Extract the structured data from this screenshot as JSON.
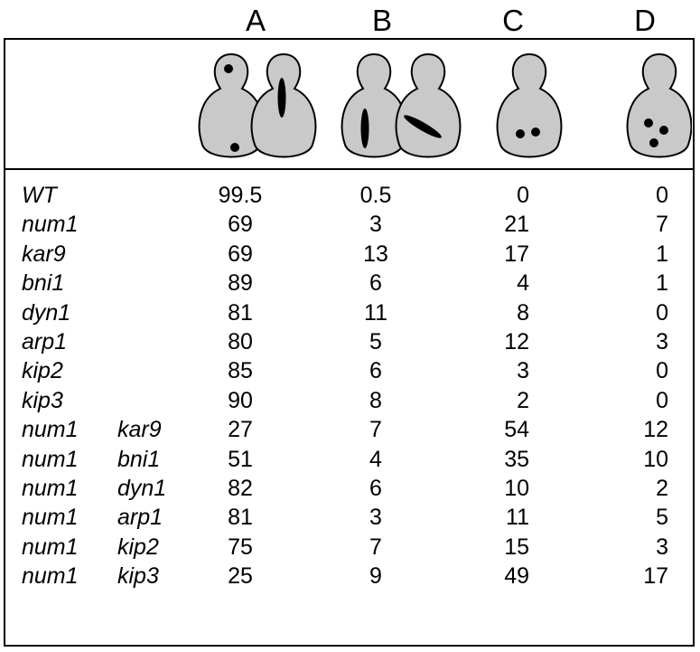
{
  "columns": [
    "A",
    "B",
    "C",
    "D"
  ],
  "rows": [
    {
      "gene1": "WT",
      "gene2": "",
      "A": "99.5",
      "B": "0.5",
      "C": "0",
      "D": "0"
    },
    {
      "gene1": "num1",
      "gene2": "",
      "A": "69",
      "B": "3",
      "C": "21",
      "D": "7"
    },
    {
      "gene1": "kar9",
      "gene2": "",
      "A": "69",
      "B": "13",
      "C": "17",
      "D": "1"
    },
    {
      "gene1": "bni1",
      "gene2": "",
      "A": "89",
      "B": "6",
      "C": "4",
      "D": "1"
    },
    {
      "gene1": "dyn1",
      "gene2": "",
      "A": "81",
      "B": "11",
      "C": "8",
      "D": "0"
    },
    {
      "gene1": "arp1",
      "gene2": "",
      "A": "80",
      "B": "5",
      "C": "12",
      "D": "3"
    },
    {
      "gene1": "kip2",
      "gene2": "",
      "A": "85",
      "B": "6",
      "C": "3",
      "D": "0"
    },
    {
      "gene1": "kip3",
      "gene2": "",
      "A": "90",
      "B": "8",
      "C": "2",
      "D": "0"
    },
    {
      "gene1": "num1",
      "gene2": "kar9",
      "A": "27",
      "B": "7",
      "C": "54",
      "D": "12"
    },
    {
      "gene1": "num1",
      "gene2": "bni1",
      "A": "51",
      "B": "4",
      "C": "35",
      "D": "10"
    },
    {
      "gene1": "num1",
      "gene2": "dyn1",
      "A": "82",
      "B": "6",
      "C": "10",
      "D": "2"
    },
    {
      "gene1": "num1",
      "gene2": "arp1",
      "A": "81",
      "B": "3",
      "C": "11",
      "D": "5"
    },
    {
      "gene1": "num1",
      "gene2": "kip2",
      "A": "75",
      "B": "7",
      "C": "15",
      "D": "3"
    },
    {
      "gene1": "num1",
      "gene2": "kip3",
      "A": "25",
      "B": "9",
      "C": "49",
      "D": "17"
    }
  ],
  "colors": {
    "cell_fill": "#c9c9c9",
    "nucleus": "#000000",
    "line": "#000000"
  }
}
